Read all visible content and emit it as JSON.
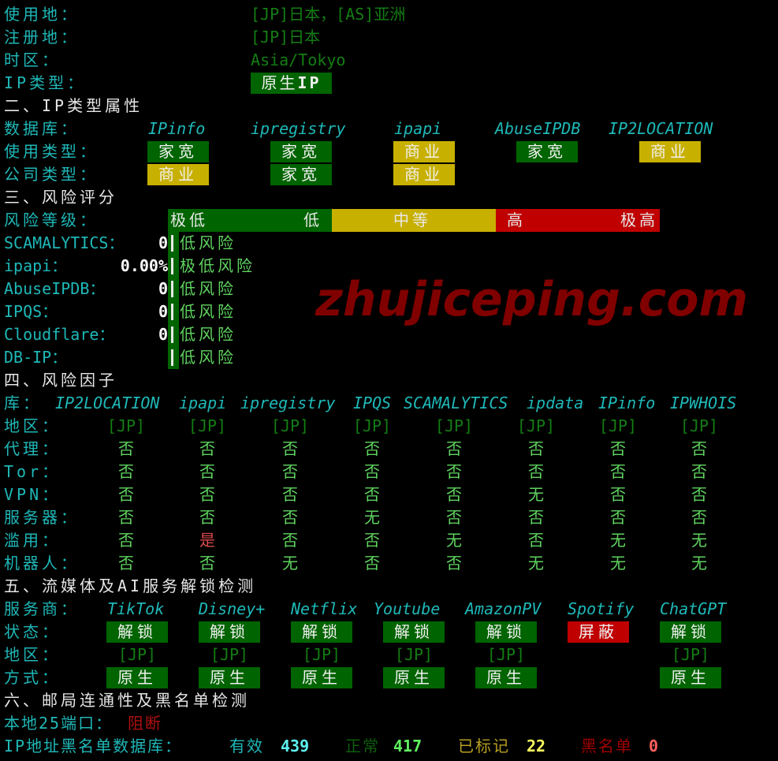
{
  "basic": {
    "usage_label": "使用地：",
    "usage_value": "[JP]日本，[AS]亚洲",
    "registry_label": "注册地：",
    "registry_value": "[JP]日本",
    "tz_label": "时区：",
    "tz_value": "Asia/Tokyo",
    "iptype_label": "IP类型：",
    "iptype_value_cn": "原生",
    "iptype_value_ip": "IP"
  },
  "section2": {
    "title": "二、IP类型属性",
    "db_label": "数据库：",
    "dbs": [
      "IPinfo",
      "ipregistry",
      "ipapi",
      "AbuseIPDB",
      "IP2LOCATION"
    ],
    "usage_label": "使用类型：",
    "usage": [
      {
        "text": "家宽",
        "color": "#006400"
      },
      {
        "text": "家宽",
        "color": "#006400"
      },
      {
        "text": "商业",
        "color": "#c8b000"
      },
      {
        "text": "家宽",
        "color": "#006400"
      },
      {
        "text": "商业",
        "color": "#c8b000"
      }
    ],
    "company_label": "公司类型：",
    "company": [
      {
        "text": "商业",
        "color": "#c8b000"
      },
      {
        "text": "家宽",
        "color": "#006400"
      },
      {
        "text": "商业",
        "color": "#c8b000"
      }
    ]
  },
  "section3": {
    "title": "三、风险评分",
    "level_label": "风险等级：",
    "levels": {
      "very_low": "极低",
      "low": "低",
      "medium": "中等",
      "high": "高",
      "very_high": "极高"
    },
    "scores": [
      {
        "name": "SCAMALYTICS：",
        "value": "0",
        "verdict": "低风险"
      },
      {
        "name": "ipapi：",
        "value": "0.00%",
        "verdict": "极低风险"
      },
      {
        "name": "AbuseIPDB：",
        "value": "0",
        "verdict": "低风险"
      },
      {
        "name": "IPQS：",
        "value": "0",
        "verdict": "低风险"
      },
      {
        "name": "Cloudflare：",
        "value": "0",
        "verdict": "低风险"
      },
      {
        "name": "DB-IP：",
        "value": "",
        "verdict": "低风险"
      }
    ]
  },
  "section4": {
    "title": "四、风险因子",
    "lib_label": "库：",
    "sources": [
      "IP2LOCATION",
      "ipapi",
      "ipregistry",
      "IPQS",
      "SCAMALYTICS",
      "ipdata",
      "IPinfo",
      "IPWHOIS"
    ],
    "rows": [
      {
        "label": "地区：",
        "values": [
          "[JP]",
          "[JP]",
          "[JP]",
          "[JP]",
          "[JP]",
          "[JP]",
          "[JP]",
          "[JP]"
        ]
      },
      {
        "label": "代理：",
        "values": [
          "否",
          "否",
          "否",
          "否",
          "否",
          "否",
          "否",
          "否"
        ]
      },
      {
        "label": "Tor：",
        "values": [
          "否",
          "否",
          "否",
          "否",
          "否",
          "否",
          "否",
          "否"
        ]
      },
      {
        "label": "VPN：",
        "values": [
          "否",
          "否",
          "否",
          "否",
          "否",
          "无",
          "否",
          "否"
        ]
      },
      {
        "label": "服务器：",
        "values": [
          "否",
          "否",
          "否",
          "无",
          "否",
          "否",
          "否",
          "否"
        ]
      },
      {
        "label": "滥用：",
        "values": [
          "否",
          "是",
          "否",
          "否",
          "无",
          "否",
          "无",
          "无"
        ]
      },
      {
        "label": "机器人：",
        "values": [
          "否",
          "否",
          "无",
          "否",
          "否",
          "无",
          "无",
          "无"
        ]
      }
    ]
  },
  "section5": {
    "title": "五、流媒体及AI服务解锁检测",
    "provider_label": "服务商：",
    "status_label": "状态：",
    "region_label": "地区：",
    "method_label": "方式：",
    "services": [
      {
        "name": "TikTok",
        "status": "解锁",
        "status_color": "#006400",
        "region": "[JP]",
        "method": "原生"
      },
      {
        "name": "Disney+",
        "status": "解锁",
        "status_color": "#006400",
        "region": "[JP]",
        "method": "原生"
      },
      {
        "name": "Netflix",
        "status": "解锁",
        "status_color": "#006400",
        "region": "[JP]",
        "method": "原生"
      },
      {
        "name": "Youtube",
        "status": "解锁",
        "status_color": "#006400",
        "region": "[JP]",
        "method": "原生"
      },
      {
        "name": "AmazonPV",
        "status": "解锁",
        "status_color": "#006400",
        "region": "[JP]",
        "method": "原生"
      },
      {
        "name": "Spotify",
        "status": "屏蔽",
        "status_color": "#c00000",
        "region": "",
        "method": ""
      },
      {
        "name": "ChatGPT",
        "status": "解锁",
        "status_color": "#006400",
        "region": "[JP]",
        "method": "原生"
      }
    ]
  },
  "section6": {
    "title": "六、邮局连通性及黑名单检测",
    "port_label": "本地25端口：",
    "port_value": "阻断",
    "bl_label": "IP地址黑名单数据库：",
    "valid_label": "有效",
    "valid": "439",
    "clean_label": "正常",
    "clean": "417",
    "marked_label": "已标记",
    "marked": "22",
    "black_label": "黑名单",
    "black": "0"
  },
  "watermark": "zhujiceping.com"
}
